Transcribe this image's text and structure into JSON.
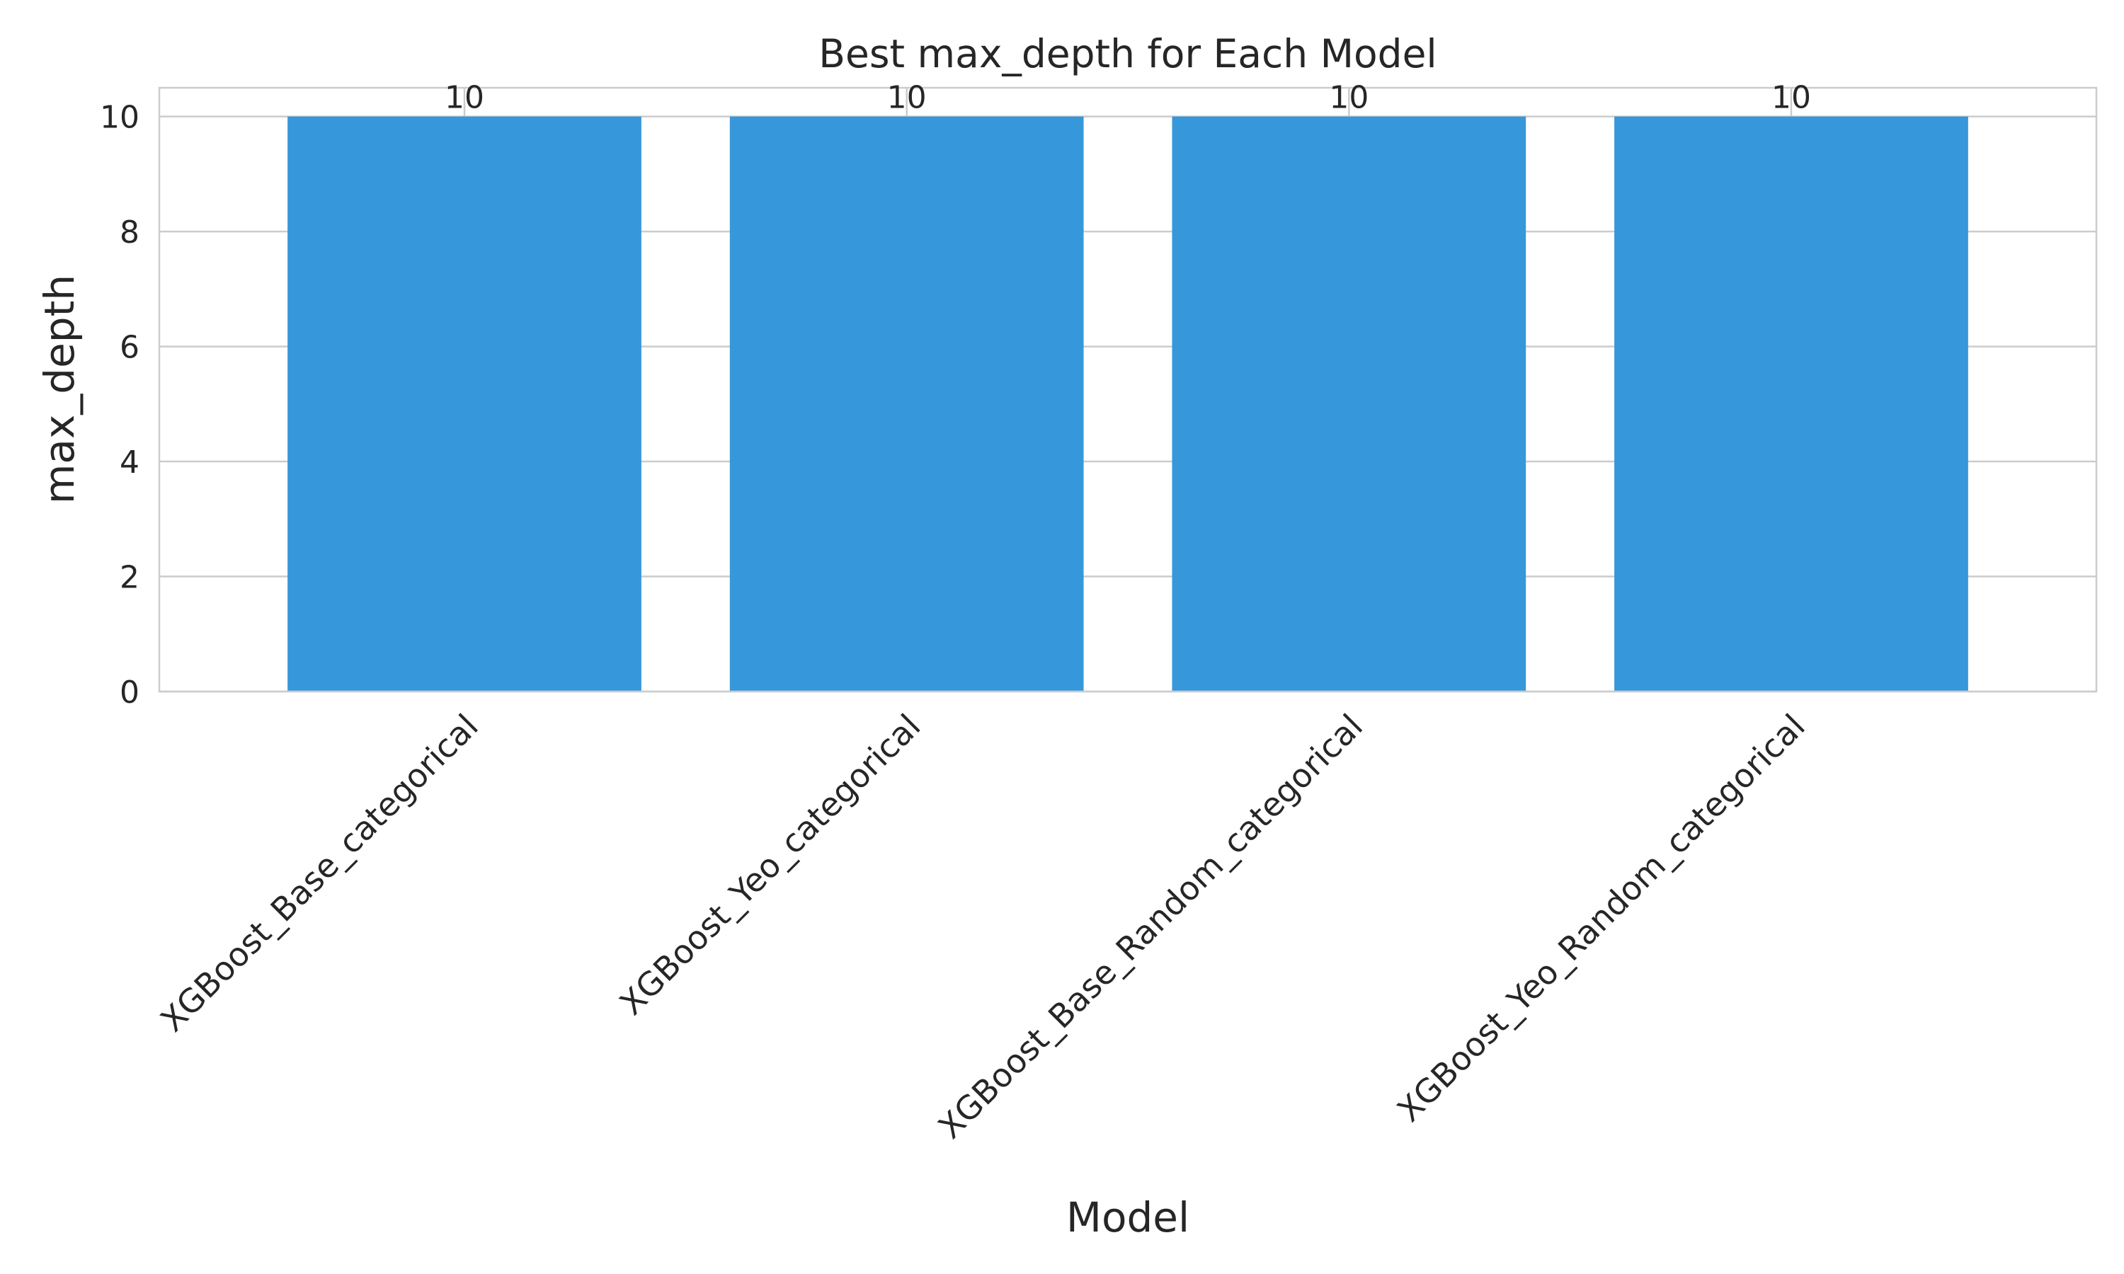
{
  "chart_data": {
    "type": "bar",
    "title": "Best max_depth for Each Model",
    "xlabel": "Model",
    "ylabel": "max_depth",
    "categories": [
      "XGBoost_Base_categorical",
      "XGBoost_Yeo_categorical",
      "XGBoost_Base_Random_categorical",
      "XGBoost_Yeo_Random_categorical"
    ],
    "values": [
      10,
      10,
      10,
      10
    ],
    "data_labels": [
      "10",
      "10",
      "10",
      "10"
    ],
    "ylim": [
      0,
      10.5
    ],
    "yticks": [
      0,
      2,
      4,
      6,
      8,
      10
    ],
    "grid": true,
    "legend": "none",
    "colors": {
      "bar": "#3697da",
      "grid": "#cccccc",
      "axis": "#cccccc",
      "text": "#262626"
    }
  }
}
